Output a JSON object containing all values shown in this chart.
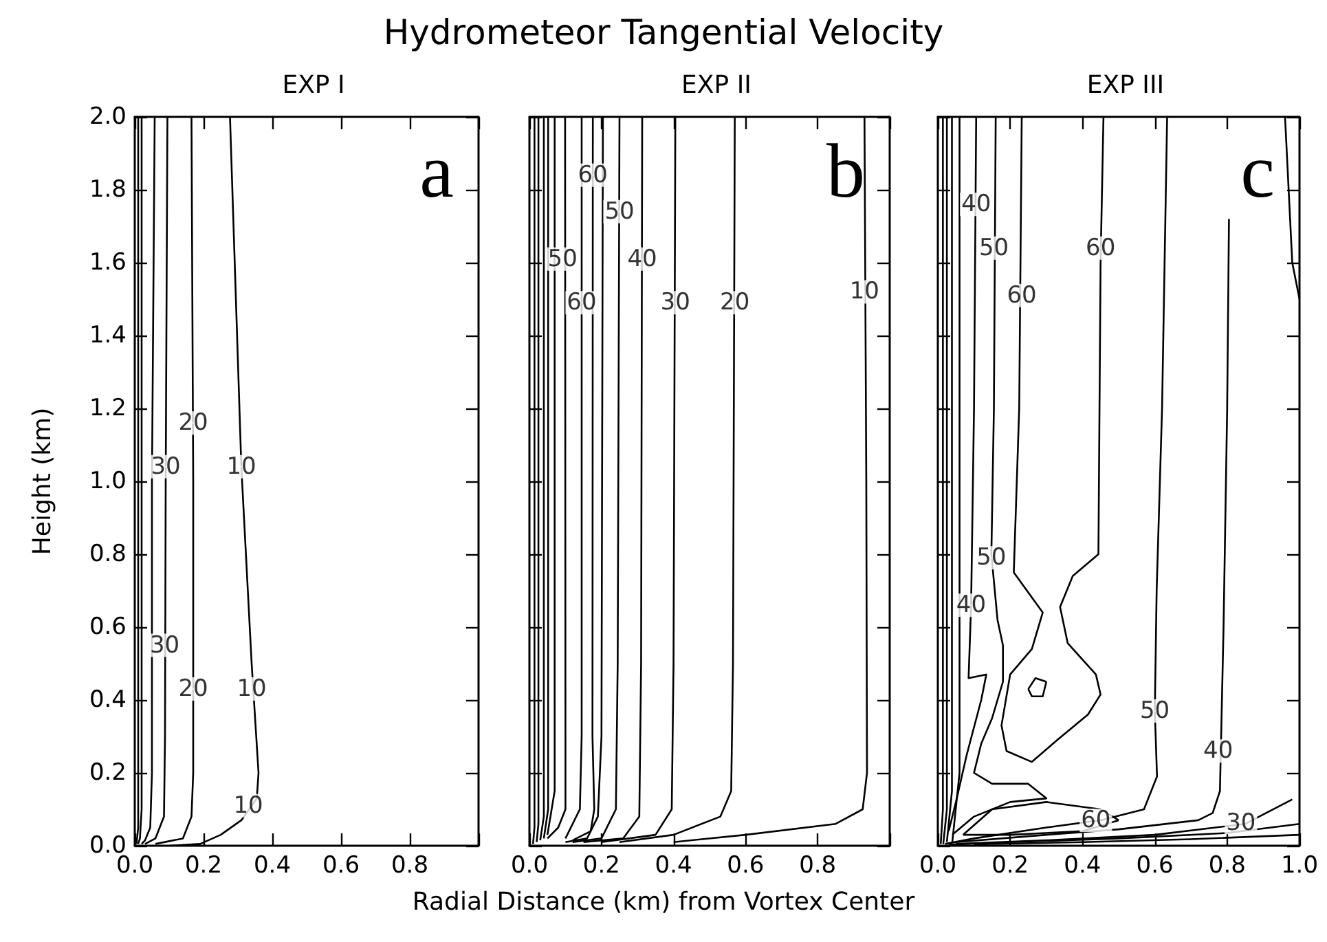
{
  "chart_data": [
    {
      "type": "line",
      "subtitle": "EXP I",
      "ylabel": "Height (km)",
      "color": "#000000",
      "xlim": [
        0,
        1
      ],
      "ylim": [
        0,
        2
      ],
      "xticks": [
        {
          "value": 0,
          "label": "0.0"
        },
        {
          "value": 0.2,
          "label": "0.2"
        },
        {
          "value": 0.4,
          "label": "0.4"
        },
        {
          "value": 0.6,
          "label": "0.6"
        },
        {
          "value": 0.8,
          "label": "0.8"
        },
        {
          "value": 1,
          "label": null
        }
      ],
      "yticks": [
        {
          "value": 0,
          "label": "0.0"
        },
        {
          "value": 0.2,
          "label": "0.2"
        },
        {
          "value": 0.4,
          "label": "0.4"
        },
        {
          "value": 0.6,
          "label": "0.6"
        },
        {
          "value": 0.8,
          "label": "0.8"
        },
        {
          "value": 1,
          "label": "1.0"
        },
        {
          "value": 1.2,
          "label": "1.2"
        },
        {
          "value": 1.4,
          "label": "1.4"
        },
        {
          "value": 1.6,
          "label": "1.6"
        },
        {
          "value": 1.8,
          "label": "1.8"
        },
        {
          "value": 2,
          "label": "2.0"
        }
      ],
      "annotations": [
        "a",
        {
          "text": "30",
          "x": 0.09,
          "y": 1.04
        },
        {
          "text": "30",
          "x": 0.087,
          "y": 0.55
        },
        {
          "text": "20",
          "x": 0.17,
          "y": 1.16
        },
        {
          "text": "20",
          "x": 0.17,
          "y": 0.43
        },
        {
          "text": "10",
          "x": 0.31,
          "y": 1.04
        },
        {
          "text": "10",
          "x": 0.34,
          "y": 0.43
        },
        {
          "text": "10",
          "x": 0.33,
          "y": 0.11
        }
      ],
      "series": [
        {
          "x": [
            0.277,
            0.31,
            0.34,
            0.36,
            0.355,
            0.31,
            0.25,
            0.19,
            0.1
          ],
          "values": [
            2.0,
            1.04,
            0.5,
            0.2,
            0.13,
            0.07,
            0.03,
            0.005,
            0.0
          ]
        },
        {
          "x": [
            0.165,
            0.17,
            0.17,
            0.165,
            0.14,
            0.06
          ],
          "values": [
            2.0,
            1.0,
            0.2,
            0.08,
            0.02,
            0.005
          ]
        },
        {
          "x": [
            0.095,
            0.09,
            0.088,
            0.085,
            0.06,
            0.03
          ],
          "values": [
            2.0,
            1.0,
            0.3,
            0.08,
            0.02,
            0.005
          ]
        },
        {
          "x": [
            0.058,
            0.05,
            0.05,
            0.045,
            0.03,
            0.02
          ],
          "values": [
            2.0,
            1.0,
            0.2,
            0.05,
            0.015,
            0.005
          ]
        },
        {
          "x": [
            0.02,
            0.02,
            0.015,
            0.01
          ],
          "values": [
            2.0,
            0.1,
            0.02,
            0.005
          ]
        },
        {
          "x": [
            0.01,
            0.01,
            0.005
          ],
          "values": [
            2.0,
            0.05,
            0.005
          ]
        }
      ]
    },
    {
      "type": "line",
      "title": "Hydrometeor Tangential Velocity",
      "subtitle": "EXP II",
      "xlabel": "Radial Distance (km) from Vortex Center",
      "color": "#000000",
      "xlim": [
        0,
        1
      ],
      "ylim": [
        0,
        2
      ],
      "tick_labels": "x",
      "xticks": [
        {
          "value": 0,
          "label": "0.0"
        },
        {
          "value": 0.2,
          "label": "0.2"
        },
        {
          "value": 0.4,
          "label": "0.4"
        },
        {
          "value": 0.6,
          "label": "0.6"
        },
        {
          "value": 0.8,
          "label": "0.8"
        },
        {
          "value": 1,
          "label": null
        }
      ],
      "yticks": [
        0,
        0.2,
        0.4,
        0.6,
        0.8,
        1,
        1.2,
        1.4,
        1.6,
        1.8,
        2
      ],
      "annotations": [
        "b",
        {
          "text": "60",
          "x": 0.176,
          "y": 1.84
        },
        {
          "text": "50",
          "x": 0.25,
          "y": 1.74
        },
        {
          "text": "50",
          "x": 0.092,
          "y": 1.61
        },
        {
          "text": "40",
          "x": 0.313,
          "y": 1.61
        },
        {
          "text": "60",
          "x": 0.145,
          "y": 1.49
        },
        {
          "text": "30",
          "x": 0.405,
          "y": 1.49
        },
        {
          "text": "20",
          "x": 0.57,
          "y": 1.49
        },
        {
          "text": "10",
          "x": 0.93,
          "y": 1.52
        }
      ],
      "series": [
        {
          "x": [
            0.93,
            0.935,
            0.937,
            0.925,
            0.85,
            0.6,
            0.4
          ],
          "values": [
            2.0,
            1.0,
            0.2,
            0.1,
            0.06,
            0.03,
            0.01
          ]
        },
        {
          "x": [
            0.57,
            0.565,
            0.56,
            0.53,
            0.4,
            0.25
          ],
          "values": [
            2.0,
            0.5,
            0.15,
            0.08,
            0.03,
            0.01
          ]
        },
        {
          "x": [
            0.405,
            0.4,
            0.395,
            0.35,
            0.2
          ],
          "values": [
            2.0,
            0.5,
            0.1,
            0.03,
            0.01
          ]
        },
        {
          "x": [
            0.313,
            0.31,
            0.305,
            0.26,
            0.15
          ],
          "values": [
            2.0,
            0.5,
            0.08,
            0.02,
            0.01
          ]
        },
        {
          "x": [
            0.25,
            0.245,
            0.24,
            0.2,
            0.12
          ],
          "values": [
            2.0,
            0.5,
            0.1,
            0.02,
            0.01
          ]
        },
        {
          "x": [
            0.204,
            0.2,
            0.19,
            0.16,
            0.1
          ],
          "values": [
            2.0,
            0.3,
            0.08,
            0.02,
            0.01
          ]
        },
        {
          "x": [
            0.176,
            0.175,
            0.18,
            0.17,
            0.12
          ],
          "values": [
            2.0,
            0.3,
            0.1,
            0.04,
            0.015
          ]
        },
        {
          "x": [
            0.145,
            0.145,
            0.14,
            0.1
          ],
          "values": [
            2.0,
            0.3,
            0.1,
            0.02
          ]
        },
        {
          "x": [
            0.099,
            0.1,
            0.1,
            0.08,
            0.05
          ],
          "values": [
            2.0,
            0.3,
            0.1,
            0.05,
            0.02
          ]
        },
        {
          "x": [
            0.07,
            0.07,
            0.05
          ],
          "values": [
            2.0,
            0.15,
            0.03
          ]
        },
        {
          "x": [
            0.052,
            0.052,
            0.04
          ],
          "values": [
            2.0,
            0.1,
            0.02
          ]
        },
        {
          "x": [
            0.04,
            0.04,
            0.03
          ],
          "values": [
            2.0,
            0.08,
            0.015
          ]
        },
        {
          "x": [
            0.025,
            0.025,
            0.02
          ],
          "values": [
            2.0,
            0.06,
            0.01
          ]
        },
        {
          "x": [
            0.014,
            0.014,
            0.01
          ],
          "values": [
            2.0,
            0.05,
            0.005
          ]
        }
      ]
    },
    {
      "type": "line",
      "subtitle": "EXP III",
      "color": "#000000",
      "xlim": [
        0,
        1
      ],
      "ylim": [
        0,
        2
      ],
      "tick_labels": "x",
      "xticks": [
        {
          "value": 0,
          "label": "0.0"
        },
        {
          "value": 0.2,
          "label": "0.2"
        },
        {
          "value": 0.4,
          "label": "0.4"
        },
        {
          "value": 0.6,
          "label": "0.6"
        },
        {
          "value": 0.8,
          "label": "0.8"
        },
        {
          "value": 1,
          "label": "1.0"
        }
      ],
      "yticks": [
        0,
        0.2,
        0.4,
        0.6,
        0.8,
        1,
        1.2,
        1.4,
        1.6,
        1.8,
        2
      ],
      "annotations": [
        "c",
        {
          "text": "40",
          "x": 0.106,
          "y": 1.76
        },
        {
          "text": "50",
          "x": 0.155,
          "y": 1.64
        },
        {
          "text": "60",
          "x": 0.232,
          "y": 1.51
        },
        {
          "text": "60",
          "x": 0.45,
          "y": 1.64
        },
        {
          "text": "50",
          "x": 0.148,
          "y": 0.79
        },
        {
          "text": "40",
          "x": 0.092,
          "y": 0.66
        },
        {
          "text": "50",
          "x": 0.6,
          "y": 0.37
        },
        {
          "text": "40",
          "x": 0.775,
          "y": 0.26
        },
        {
          "text": "60",
          "x": 0.437,
          "y": 0.07
        },
        {
          "text": "30",
          "x": 0.838,
          "y": 0.063
        }
      ],
      "series": [
        {
          "x": [
            0.805,
            0.8,
            0.79,
            0.78,
            0.76,
            0.72,
            0.5,
            0.3,
            0.05
          ],
          "values": [
            1.72,
            1.2,
            0.6,
            0.15,
            0.09,
            0.07,
            0.045,
            0.03,
            0.01
          ]
        },
        {
          "x": [
            0.634,
            0.62,
            0.605,
            0.6,
            0.606,
            0.57,
            0.45,
            0.3,
            0.1,
            0.02
          ],
          "values": [
            2.0,
            1.2,
            0.7,
            0.37,
            0.19,
            0.1,
            0.07,
            0.05,
            0.02,
            0.005
          ]
        },
        {
          "x": [
            0.232,
            0.225,
            0.21,
            0.29,
            0.26,
            0.2,
            0.176,
            0.19,
            0.26,
            0.33,
            0.415,
            0.45,
            0.437,
            0.359,
            0.338,
            0.373,
            0.444,
            0.45,
            0.458
          ],
          "values": [
            2.0,
            1.2,
            0.75,
            0.64,
            0.54,
            0.47,
            0.33,
            0.26,
            0.23,
            0.29,
            0.36,
            0.415,
            0.47,
            0.556,
            0.655,
            0.74,
            0.8,
            1.6,
            2.0
          ]
        },
        {
          "x": [
            0.16,
            0.155,
            0.148,
            0.165,
            0.18,
            0.18,
            0.15,
            0.12,
            0.1,
            0.15,
            0.25,
            0.3,
            0.2,
            0.1,
            0.04
          ],
          "values": [
            2.0,
            1.2,
            0.8,
            0.62,
            0.55,
            0.45,
            0.35,
            0.28,
            0.2,
            0.17,
            0.17,
            0.13,
            0.12,
            0.08,
            0.03
          ]
        },
        {
          "x": [
            0.106,
            0.1,
            0.092,
            0.085,
            0.134,
            0.12,
            0.08,
            0.05,
            0.03
          ],
          "values": [
            2.0,
            1.2,
            0.66,
            0.46,
            0.47,
            0.4,
            0.25,
            0.12,
            0.04
          ]
        },
        {
          "x": [
            0.07,
            0.15,
            0.3,
            0.45,
            0.5
          ],
          "values": [
            0.03,
            0.1,
            0.12,
            0.1,
            0.07
          ]
        },
        {
          "x": [
            0.07,
            0.2,
            0.4,
            0.5
          ],
          "values": [
            0.03,
            0.03,
            0.04,
            0.07
          ]
        },
        {
          "x": [
            0.25,
            0.27,
            0.3
          ],
          "values": [
            0.43,
            0.46,
            0.45
          ]
        },
        {
          "x": [
            0.25,
            0.26,
            0.29,
            0.3
          ],
          "values": [
            0.43,
            0.41,
            0.41,
            0.45
          ]
        },
        {
          "x": [
            0.98,
            0.85,
            0.6,
            0.3,
            0.05
          ],
          "values": [
            0.127,
            0.06,
            0.03,
            0.015,
            0.005
          ]
        },
        {
          "x": [
            1.0,
            0.8,
            0.5,
            0.2,
            0.03
          ],
          "values": [
            0.06,
            0.035,
            0.02,
            0.01,
            0.003
          ]
        },
        {
          "x": [
            1.0,
            0.7,
            0.4,
            0.1
          ],
          "values": [
            0.03,
            0.018,
            0.01,
            0.004
          ]
        },
        {
          "x": [
            0.96,
            0.98,
            1.0
          ],
          "values": [
            2.0,
            1.6,
            1.5
          ]
        },
        {
          "x": [
            0.014,
            0.014,
            0.008
          ],
          "values": [
            2.0,
            0.1,
            0.005
          ]
        },
        {
          "x": [
            0.025,
            0.025,
            0.015
          ],
          "values": [
            2.0,
            0.1,
            0.005
          ]
        },
        {
          "x": [
            0.039,
            0.039,
            0.025
          ],
          "values": [
            2.0,
            0.15,
            0.01
          ]
        },
        {
          "x": [
            0.06,
            0.06,
            0.04
          ],
          "values": [
            2.0,
            0.2,
            0.01
          ]
        }
      ]
    }
  ]
}
